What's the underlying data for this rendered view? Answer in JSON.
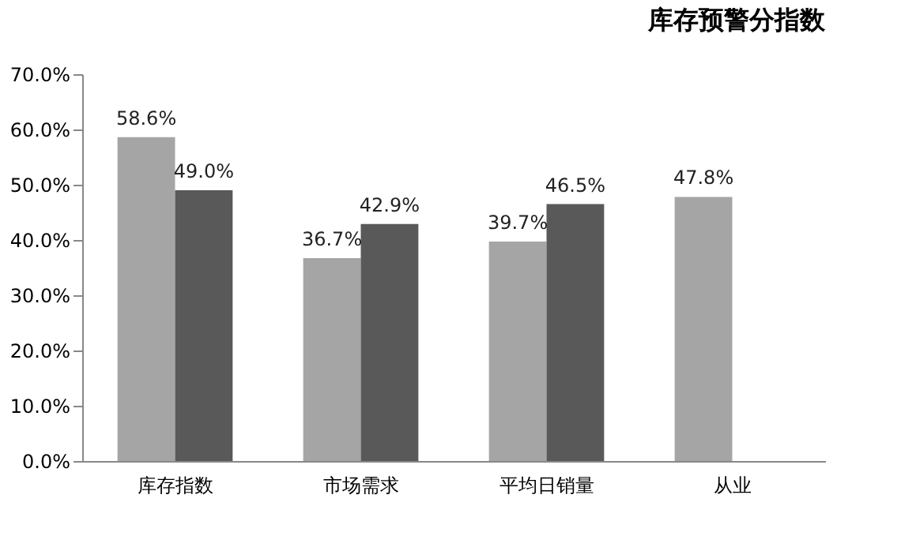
{
  "chart_data": {
    "type": "bar",
    "title": "库存预警分指数",
    "categories": [
      "库存指数",
      "市场需求",
      "平均日销量",
      "从业"
    ],
    "series": [
      {
        "color": "#a5a5a5",
        "values": [
          58.6,
          36.7,
          39.7,
          47.8
        ],
        "value_labels": [
          "58.6%",
          "36.7%",
          "39.7%",
          "47.8%"
        ]
      },
      {
        "color": "#595959",
        "values": [
          49.0,
          42.9,
          46.5,
          null
        ],
        "value_labels": [
          "49.0%",
          "42.9%",
          "46.5%",
          null
        ]
      }
    ],
    "ylim": [
      0,
      70
    ],
    "yticks": [
      {
        "value": 0,
        "label": "0.0%"
      },
      {
        "value": 10,
        "label": "10.0%"
      },
      {
        "value": 20,
        "label": "20.0%"
      },
      {
        "value": 30,
        "label": "30.0%"
      },
      {
        "value": 40,
        "label": "40.0%"
      },
      {
        "value": 50,
        "label": "50.0%"
      },
      {
        "value": 60,
        "label": "60.0%"
      },
      {
        "value": 70,
        "label": "70.0%"
      }
    ],
    "grid": false,
    "legend": false
  }
}
